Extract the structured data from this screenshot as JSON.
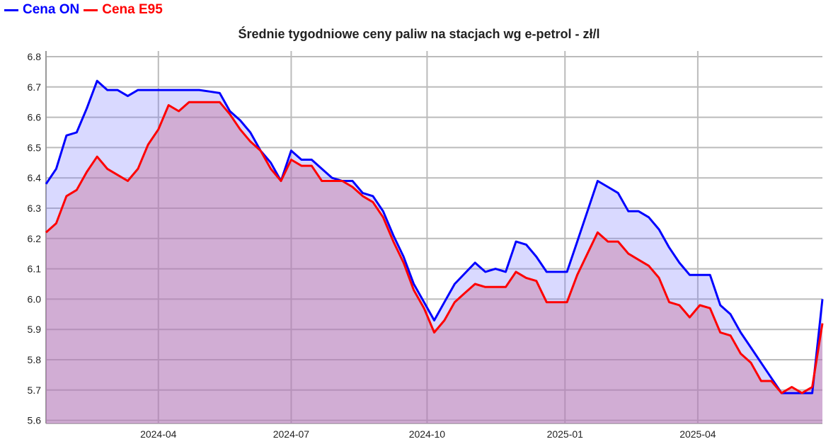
{
  "legend": {
    "items": [
      {
        "label": "Cena ON",
        "color": "#0000ff"
      },
      {
        "label": "Cena E95",
        "color": "#ff0000"
      }
    ]
  },
  "title": "Średnie tygodniowe ceny paliw na stacjach wg e-petrol - zł/l",
  "chart_data": {
    "type": "area",
    "title": "Średnie tygodniowe ceny paliw na stacjach wg e-petrol - zł/l",
    "xlabel": "",
    "ylabel": "",
    "ylim": [
      5.6,
      6.82
    ],
    "yticks": [
      "5.6",
      "5.7",
      "5.8",
      "5.9",
      "6.0",
      "6.1",
      "6.2",
      "6.3",
      "6.4",
      "6.5",
      "6.6",
      "6.7",
      "6.8"
    ],
    "xticks": [
      {
        "label": "2024-04",
        "index": 11
      },
      {
        "label": "2024-07",
        "index": 24
      },
      {
        "label": "2024-10",
        "index": 37.3
      },
      {
        "label": "2025-01",
        "index": 50.8
      },
      {
        "label": "2025-04",
        "index": 63.8
      }
    ],
    "grid": true,
    "legend_position": "top-left",
    "x_granularity": "weekly",
    "series": [
      {
        "name": "Cena ON",
        "color": "#0000ff",
        "fill": "rgba(120,120,255,0.28)",
        "values": [
          6.38,
          6.43,
          6.54,
          6.55,
          6.63,
          6.72,
          6.69,
          6.69,
          6.67,
          6.69,
          6.69,
          6.69,
          6.69,
          6.69,
          6.69,
          6.69,
          6.685,
          6.68,
          6.62,
          6.59,
          6.55,
          6.49,
          6.45,
          6.39,
          6.49,
          6.46,
          6.46,
          6.43,
          6.4,
          6.39,
          6.39,
          6.35,
          6.34,
          6.29,
          6.21,
          6.14,
          6.05,
          5.99,
          5.93,
          5.99,
          6.05,
          6.085,
          6.12,
          6.09,
          6.1,
          6.09,
          6.19,
          6.18,
          6.14,
          6.09,
          6.09,
          6.09,
          6.19,
          6.29,
          6.39,
          6.37,
          6.35,
          6.29,
          6.29,
          6.27,
          6.23,
          6.17,
          6.12,
          6.08,
          6.08,
          6.08,
          5.98,
          5.95,
          5.89,
          5.84,
          5.79,
          5.74,
          5.69,
          5.69,
          5.69,
          5.69,
          6.0
        ]
      },
      {
        "name": "Cena E95",
        "color": "#ff0000",
        "fill": "rgba(200,120,160,0.45)",
        "values": [
          6.22,
          6.25,
          6.34,
          6.36,
          6.42,
          6.47,
          6.43,
          6.41,
          6.39,
          6.43,
          6.51,
          6.56,
          6.64,
          6.62,
          6.65,
          6.65,
          6.65,
          6.65,
          6.61,
          6.56,
          6.52,
          6.49,
          6.43,
          6.39,
          6.46,
          6.44,
          6.44,
          6.39,
          6.39,
          6.39,
          6.37,
          6.34,
          6.32,
          6.27,
          6.19,
          6.12,
          6.03,
          5.97,
          5.89,
          5.93,
          5.99,
          6.02,
          6.05,
          6.04,
          6.04,
          6.04,
          6.09,
          6.07,
          6.06,
          5.99,
          5.99,
          5.99,
          6.08,
          6.15,
          6.22,
          6.19,
          6.19,
          6.15,
          6.13,
          6.11,
          6.07,
          5.99,
          5.98,
          5.94,
          5.98,
          5.97,
          5.89,
          5.88,
          5.82,
          5.79,
          5.73,
          5.73,
          5.69,
          5.71,
          5.69,
          5.71,
          5.92
        ]
      }
    ]
  }
}
